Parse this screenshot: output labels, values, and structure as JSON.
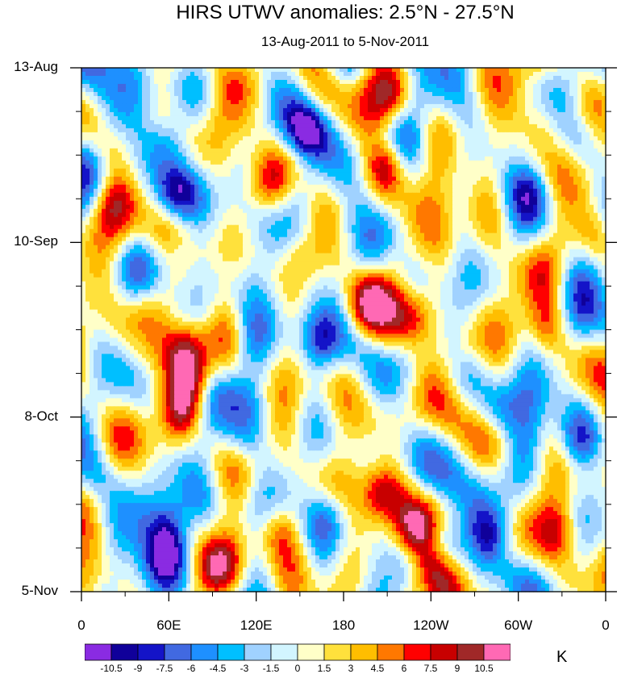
{
  "chart_data": {
    "type": "heatmap",
    "title": "HIRS UTWV anomalies: 2.5°N - 27.5°N",
    "subtitle": "13-Aug-2011 to 5-Nov-2011",
    "xlabel": "",
    "ylabel": "",
    "x_range": [
      0,
      360
    ],
    "x_ticks": [
      "0",
      "60E",
      "120E",
      "180",
      "120W",
      "60W",
      "0"
    ],
    "x_tick_values": [
      0,
      60,
      120,
      180,
      240,
      300,
      360
    ],
    "y_ticks": [
      "13-Aug",
      "10-Sep",
      "8-Oct",
      "5-Nov"
    ],
    "y_tick_values": [
      0,
      28,
      56,
      84
    ],
    "y_range_days": [
      0,
      84
    ],
    "units": "K",
    "levels": [
      -10.5,
      -9,
      -7.5,
      -6,
      -4.5,
      -3,
      -1.5,
      0,
      1.5,
      3,
      4.5,
      6,
      7.5,
      9,
      10.5
    ],
    "level_labels": [
      "-10.5",
      "-9",
      "-7.5",
      "-6",
      "-4.5",
      "-3",
      "-1.5",
      "0",
      "1.5",
      "3",
      "4.5",
      "6",
      "7.5",
      "9",
      "10.5"
    ],
    "colors": [
      "#8a2be2",
      "#10009a",
      "#1414c8",
      "#4169e1",
      "#1e90ff",
      "#00bfff",
      "#a0d2ff",
      "#d2f5ff",
      "#ffffc8",
      "#ffe13c",
      "#ffbe00",
      "#ff7800",
      "#ff0000",
      "#c80000",
      "#a02828",
      "#ff69b4"
    ],
    "anomaly_centers": [
      {
        "lon": 210,
        "day": 16,
        "amp": 9
      },
      {
        "lon": 215,
        "day": 5,
        "amp": 7
      },
      {
        "lon": 75,
        "day": 50,
        "amp": 10
      },
      {
        "lon": 73,
        "day": 45,
        "amp": 8
      },
      {
        "lon": 70,
        "day": 55,
        "amp": 8
      },
      {
        "lon": 240,
        "day": 80,
        "amp": 11
      },
      {
        "lon": 230,
        "day": 74,
        "amp": 9
      },
      {
        "lon": 205,
        "day": 68,
        "amp": 7.5
      },
      {
        "lon": 252,
        "day": 84,
        "amp": 8
      },
      {
        "lon": 195,
        "day": 38,
        "amp": 6
      },
      {
        "lon": 230,
        "day": 40,
        "amp": 5
      },
      {
        "lon": 218,
        "day": 30,
        "amp": 5
      },
      {
        "lon": 150,
        "day": 30,
        "amp": 5
      },
      {
        "lon": 95,
        "day": 80,
        "amp": 6
      },
      {
        "lon": 135,
        "day": 74,
        "amp": 5
      },
      {
        "lon": 320,
        "day": 42,
        "amp": 6
      },
      {
        "lon": 330,
        "day": 74,
        "amp": 5
      },
      {
        "lon": 125,
        "day": 19,
        "amp": 5
      },
      {
        "lon": 20,
        "day": 22,
        "amp": 4
      },
      {
        "lon": 45,
        "day": 38,
        "amp": 5
      },
      {
        "lon": 265,
        "day": 45,
        "amp": 4
      },
      {
        "lon": 352,
        "day": 27,
        "amp": 4
      },
      {
        "lon": 320,
        "day": 8,
        "amp": 4
      },
      {
        "lon": 60,
        "day": 78,
        "amp": -10
      },
      {
        "lon": 58,
        "day": 73,
        "amp": -6
      },
      {
        "lon": 65,
        "day": 20,
        "amp": -7
      },
      {
        "lon": 60,
        "day": 12,
        "amp": -6
      },
      {
        "lon": 65,
        "day": 30,
        "amp": -6
      },
      {
        "lon": 155,
        "day": 10,
        "amp": -7
      },
      {
        "lon": 150,
        "day": 20,
        "amp": -5
      },
      {
        "lon": 250,
        "day": 76,
        "amp": -7
      },
      {
        "lon": 280,
        "day": 75,
        "amp": -6
      },
      {
        "lon": 165,
        "day": 44,
        "amp": -5
      },
      {
        "lon": 170,
        "day": 72,
        "amp": -5
      },
      {
        "lon": 115,
        "day": 44,
        "amp": -4
      },
      {
        "lon": 285,
        "day": 55,
        "amp": -5
      },
      {
        "lon": 340,
        "day": 60,
        "amp": -5
      },
      {
        "lon": 20,
        "day": 8,
        "amp": -4
      },
      {
        "lon": 110,
        "day": 60,
        "amp": -4
      },
      {
        "lon": 310,
        "day": 20,
        "amp": -4
      },
      {
        "lon": 345,
        "day": 12,
        "amp": -4
      },
      {
        "lon": 10,
        "day": 65,
        "amp": -4
      }
    ]
  }
}
